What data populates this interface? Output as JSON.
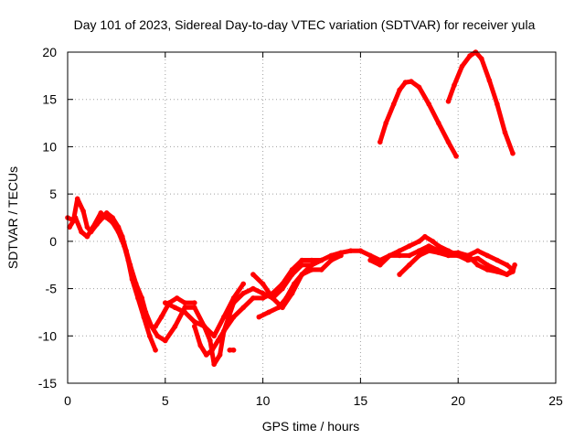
{
  "chart_data": {
    "type": "scatter",
    "title": "Day 101 of 2023, Sidereal Day-to-day VTEC variation (SDTVAR) for receiver yula",
    "xlabel": "GPS time / hours",
    "ylabel": "SDTVAR / TECUs",
    "xlim": [
      0,
      25
    ],
    "ylim": [
      -15,
      20
    ],
    "xticks": [
      0,
      5,
      10,
      15,
      20,
      25
    ],
    "yticks": [
      -15,
      -10,
      -5,
      0,
      5,
      10,
      15,
      20
    ],
    "grid": true,
    "color": "#ff0000",
    "series": [
      {
        "name": "track-1",
        "points": [
          [
            0,
            2.5
          ],
          [
            0.3,
            2.2
          ],
          [
            0.5,
            4.5
          ],
          [
            0.8,
            3.2
          ],
          [
            1,
            1.5
          ],
          [
            1.2,
            1
          ],
          [
            1.5,
            1.8
          ],
          [
            1.8,
            2.5
          ],
          [
            2,
            3
          ],
          [
            2.3,
            2.5
          ],
          [
            2.6,
            1.5
          ],
          [
            2.8,
            0.5
          ],
          [
            3,
            -1
          ],
          [
            3.2,
            -2.5
          ],
          [
            3.5,
            -4.5
          ],
          [
            3.8,
            -6
          ],
          [
            4,
            -7.5
          ],
          [
            4.3,
            -9
          ],
          [
            4.6,
            -10
          ],
          [
            5,
            -10.5
          ],
          [
            5.5,
            -9
          ],
          [
            6,
            -7
          ],
          [
            6.5,
            -7
          ],
          [
            7,
            -9
          ],
          [
            7.5,
            -10
          ],
          [
            8,
            -8
          ],
          [
            8.5,
            -6
          ],
          [
            9,
            -4.5
          ]
        ]
      },
      {
        "name": "track-2",
        "points": [
          [
            0.1,
            1.5
          ],
          [
            0.4,
            2.5
          ],
          [
            0.7,
            1
          ],
          [
            1,
            0.5
          ],
          [
            1.3,
            1.5
          ],
          [
            1.7,
            3
          ],
          [
            2,
            2.5
          ],
          [
            2.3,
            2
          ],
          [
            2.6,
            1
          ],
          [
            2.9,
            -0.5
          ],
          [
            3.1,
            -2
          ],
          [
            3.3,
            -4
          ],
          [
            3.6,
            -6
          ],
          [
            3.9,
            -8
          ],
          [
            4.2,
            -10
          ],
          [
            4.5,
            -11.5
          ]
        ]
      },
      {
        "name": "track-3",
        "points": [
          [
            4.5,
            -9
          ],
          [
            4.8,
            -8
          ],
          [
            5.2,
            -6.5
          ],
          [
            5.6,
            -6
          ],
          [
            6,
            -6.5
          ],
          [
            6.5,
            -6.5
          ]
        ]
      },
      {
        "name": "track-4",
        "points": [
          [
            5,
            -6.5
          ],
          [
            5.5,
            -7
          ],
          [
            6,
            -7.5
          ],
          [
            6.5,
            -8.5
          ],
          [
            7,
            -9
          ],
          [
            7.3,
            -10.5
          ],
          [
            7.5,
            -13
          ],
          [
            7.8,
            -12
          ],
          [
            8,
            -9.5
          ],
          [
            8.5,
            -6.5
          ],
          [
            9,
            -5.5
          ],
          [
            9.5,
            -5
          ],
          [
            10,
            -5.5
          ],
          [
            10.5,
            -6
          ],
          [
            11,
            -5
          ],
          [
            11.5,
            -3.5
          ],
          [
            12,
            -2.5
          ],
          [
            12.5,
            -2.5
          ],
          [
            13,
            -2
          ],
          [
            13.5,
            -1.5
          ],
          [
            14,
            -1.2
          ],
          [
            14.5,
            -1
          ],
          [
            15,
            -1
          ],
          [
            15.5,
            -1.5
          ],
          [
            16,
            -2
          ],
          [
            16.5,
            -1.5
          ],
          [
            17,
            -1
          ],
          [
            17.5,
            -0.5
          ],
          [
            18,
            0
          ],
          [
            18.3,
            0.5
          ],
          [
            18.7,
            0
          ],
          [
            19,
            -0.5
          ],
          [
            19.5,
            -1
          ],
          [
            20,
            -1.5
          ],
          [
            20.5,
            -1.5
          ],
          [
            21,
            -1
          ],
          [
            21.5,
            -1.5
          ],
          [
            22,
            -2
          ],
          [
            22.5,
            -2.5
          ],
          [
            22.8,
            -3
          ]
        ]
      },
      {
        "name": "track-5",
        "points": [
          [
            6.5,
            -9
          ],
          [
            6.8,
            -11
          ],
          [
            7.1,
            -12
          ],
          [
            7.4,
            -11.5
          ],
          [
            7.7,
            -10.5
          ],
          [
            8,
            -9.5
          ],
          [
            8.5,
            -8
          ],
          [
            9,
            -7
          ],
          [
            9.5,
            -6
          ],
          [
            10,
            -6
          ],
          [
            10.5,
            -5.5
          ],
          [
            11,
            -4.5
          ],
          [
            11.5,
            -3
          ],
          [
            12,
            -2
          ],
          [
            12.5,
            -2
          ],
          [
            13,
            -2
          ]
        ]
      },
      {
        "name": "track-6",
        "points": [
          [
            9.5,
            -3.5
          ],
          [
            10,
            -4.5
          ],
          [
            10.5,
            -6
          ],
          [
            11,
            -7
          ],
          [
            11.5,
            -5.5
          ],
          [
            12,
            -3.5
          ],
          [
            12.5,
            -2.5
          ],
          [
            13,
            -2
          ]
        ]
      },
      {
        "name": "track-7",
        "points": [
          [
            9.8,
            -8
          ],
          [
            10.3,
            -7.5
          ],
          [
            10.8,
            -7
          ],
          [
            11.2,
            -6
          ],
          [
            11.6,
            -4.5
          ],
          [
            12,
            -3.5
          ],
          [
            12.5,
            -3
          ],
          [
            13,
            -3
          ],
          [
            13.5,
            -2
          ],
          [
            14,
            -1.5
          ]
        ]
      },
      {
        "name": "track-8",
        "points": [
          [
            8.3,
            -11.5
          ],
          [
            8.5,
            -11.5
          ]
        ]
      },
      {
        "name": "track-9",
        "points": [
          [
            17,
            -3.5
          ],
          [
            17.5,
            -2.5
          ],
          [
            18,
            -1.5
          ],
          [
            18.5,
            -1
          ],
          [
            19,
            -1.2
          ],
          [
            19.5,
            -1.5
          ],
          [
            20,
            -1.5
          ],
          [
            20.5,
            -2
          ],
          [
            21,
            -1.8
          ],
          [
            21.5,
            -2.5
          ],
          [
            22,
            -3
          ],
          [
            22.5,
            -3.5
          ],
          [
            22.8,
            -3.2
          ],
          [
            22.9,
            -2.5
          ]
        ]
      },
      {
        "name": "track-10",
        "points": [
          [
            15.5,
            -2
          ],
          [
            16,
            -2.5
          ],
          [
            16.5,
            -1.5
          ],
          [
            17,
            -1.5
          ],
          [
            17.5,
            -1.5
          ],
          [
            18,
            -1
          ],
          [
            18.5,
            -0.5
          ],
          [
            19,
            -1
          ],
          [
            19.5,
            -1.3
          ],
          [
            20,
            -1.2
          ],
          [
            20.5,
            -1.5
          ],
          [
            21,
            -2.5
          ],
          [
            21.5,
            -3
          ],
          [
            22,
            -3.2
          ],
          [
            22.5,
            -3.5
          ],
          [
            22.8,
            -3
          ]
        ]
      },
      {
        "name": "track-11",
        "points": [
          [
            16,
            10.5
          ],
          [
            16.3,
            12.5
          ],
          [
            16.7,
            14.5
          ],
          [
            17,
            16
          ],
          [
            17.3,
            16.8
          ],
          [
            17.6,
            16.9
          ],
          [
            18,
            16.3
          ],
          [
            18.5,
            14.5
          ],
          [
            19,
            12.5
          ],
          [
            19.5,
            10.5
          ],
          [
            19.9,
            9
          ]
        ]
      },
      {
        "name": "track-12",
        "points": [
          [
            19.5,
            14.8
          ],
          [
            19.8,
            16.5
          ],
          [
            20.2,
            18.5
          ],
          [
            20.6,
            19.6
          ],
          [
            20.9,
            20
          ],
          [
            21.2,
            19.3
          ],
          [
            21.6,
            17
          ],
          [
            22,
            14.5
          ],
          [
            22.4,
            11.5
          ],
          [
            22.8,
            9.3
          ]
        ]
      }
    ]
  }
}
